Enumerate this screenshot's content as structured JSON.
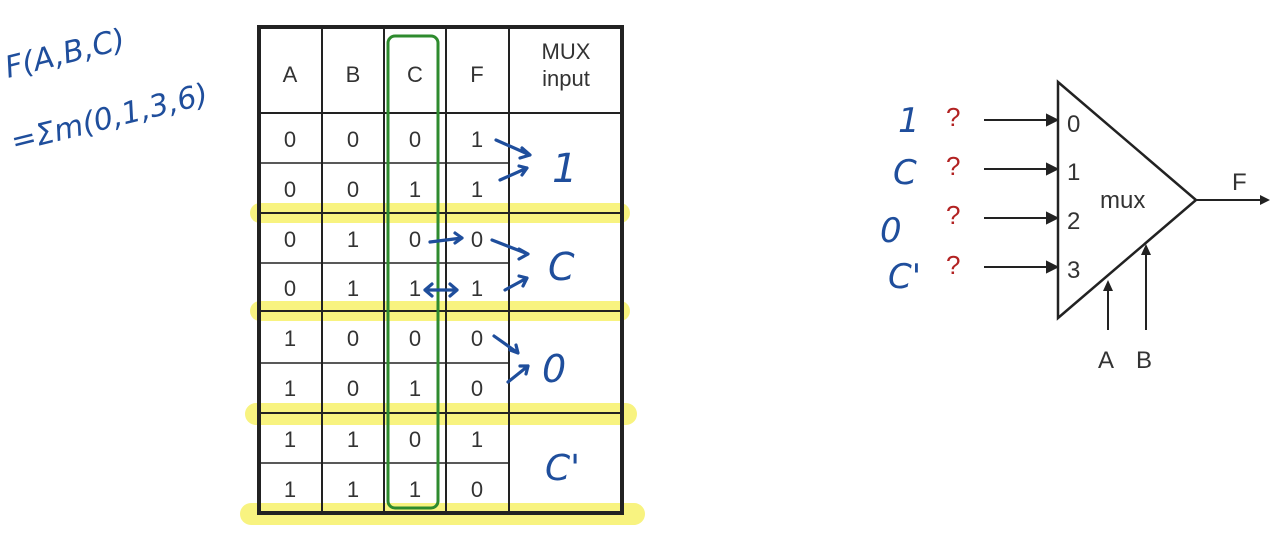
{
  "truth_table": {
    "headers": [
      "A",
      "B",
      "C",
      "F",
      "MUX input"
    ],
    "rows": [
      [
        "0",
        "0",
        "0",
        "1"
      ],
      [
        "0",
        "0",
        "1",
        "1"
      ],
      [
        "0",
        "1",
        "0",
        "0"
      ],
      [
        "0",
        "1",
        "1",
        "1"
      ],
      [
        "1",
        "0",
        "0",
        "0"
      ],
      [
        "1",
        "0",
        "1",
        "0"
      ],
      [
        "1",
        "1",
        "0",
        "1"
      ],
      [
        "1",
        "1",
        "1",
        "0"
      ]
    ],
    "mux_inputs_handwritten": [
      "1",
      "C",
      "0",
      "C'"
    ]
  },
  "handwritten_function": {
    "line1": "F(A,B,C)",
    "line2": "=Σm(0,1,3,6)"
  },
  "mux": {
    "label": "mux",
    "inputs": [
      "0",
      "1",
      "2",
      "3"
    ],
    "output": "F",
    "selects": [
      "A",
      "B"
    ],
    "question_mark": "?",
    "handwritten_inputs": [
      "1",
      "C",
      "0",
      "C'"
    ]
  },
  "colors": {
    "handwriting": "#1f4e9c",
    "highlight": "#f7f16a",
    "c_column_box": "#2e8b2e",
    "question_mark": "#b22222"
  }
}
